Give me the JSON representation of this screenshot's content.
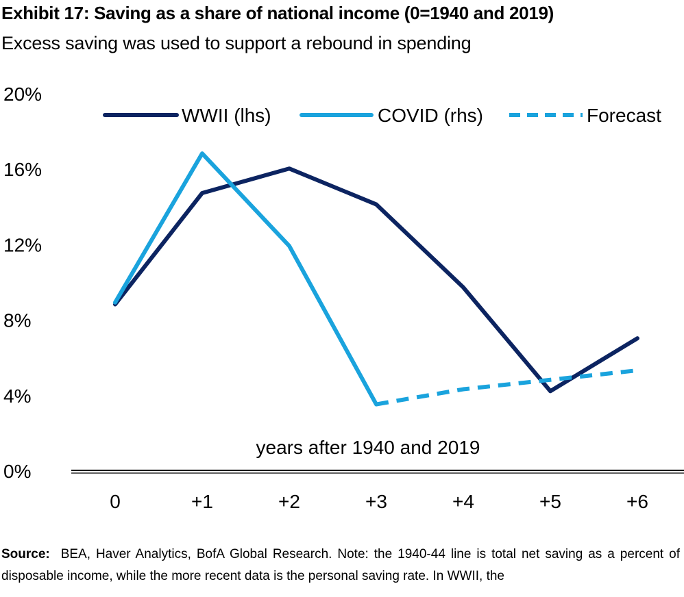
{
  "title": "Exhibit 17: Saving as a share of national income (0=1940 and 2019)",
  "subtitle": "Excess saving was used to support a rebound in spending",
  "chart_data": {
    "type": "line",
    "categories": [
      "0",
      "+1",
      "+2",
      "+3",
      "+4",
      "+5",
      "+6"
    ],
    "xlabel": "years after 1940 and 2019",
    "ylabel": "",
    "ylim": [
      0,
      20
    ],
    "yticks": [
      "0%",
      "4%",
      "8%",
      "12%",
      "16%",
      "20%"
    ],
    "grid": false,
    "legend_position": "top",
    "series": [
      {
        "name": "WWII (lhs)",
        "color": "#0c2461",
        "style": "solid",
        "values": [
          8.8,
          14.7,
          16.0,
          14.1,
          9.7,
          4.2,
          7.0
        ]
      },
      {
        "name": "COVID (rhs)",
        "color": "#1aa3dd",
        "style": "solid",
        "values": [
          8.9,
          16.8,
          11.9,
          3.5,
          null,
          null,
          null
        ]
      },
      {
        "name": "Forecast",
        "color": "#1aa3dd",
        "style": "dashed",
        "values": [
          null,
          null,
          null,
          3.5,
          4.3,
          4.8,
          5.3
        ]
      }
    ]
  },
  "source_label": "Source:",
  "source_text": "BEA, Haver Analytics, BofA Global Research. Note: the 1940-44 line is total net saving as a percent of disposable income, while the more recent data is the personal saving rate. In WWII, the"
}
